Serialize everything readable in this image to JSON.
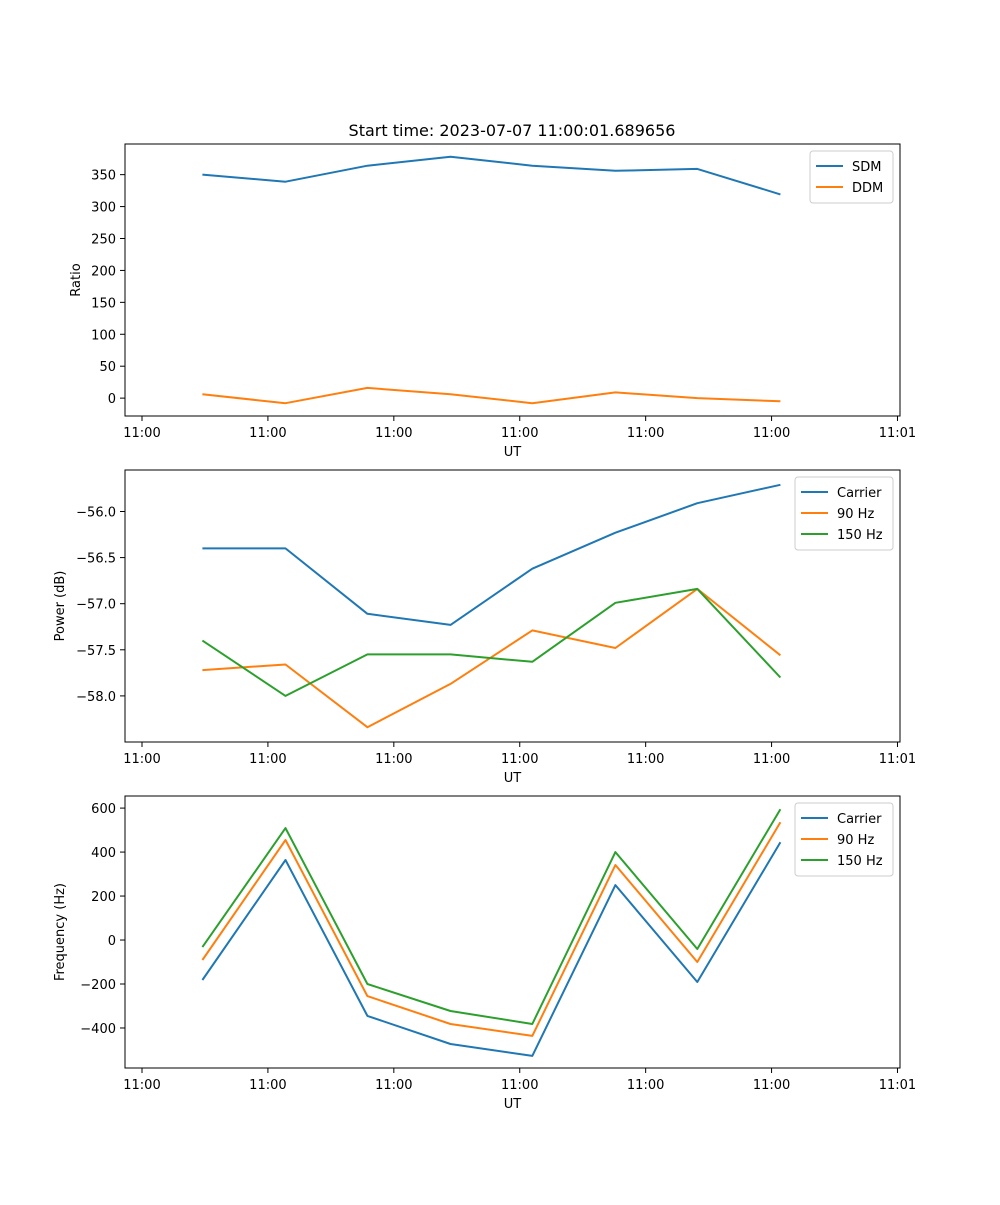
{
  "title": "Start time: 2023-07-07 11:00:01.689656",
  "colors": {
    "blue": "#1f77b4",
    "orange": "#ff7f0e",
    "green": "#2ca02c"
  },
  "chart_data": [
    {
      "type": "line",
      "xlabel": "UT",
      "ylabel": "Ratio",
      "x_unit": "seconds after 11:00:00",
      "xlim": [
        -1.35,
        60.2
      ],
      "xticks": [
        0,
        10,
        20,
        30,
        40,
        50,
        60
      ],
      "xtick_labels": [
        "11:00",
        "11:00",
        "11:00",
        "11:00",
        "11:00",
        "11:00",
        "11:01"
      ],
      "ylim": [
        -28,
        398
      ],
      "yticks": [
        0,
        50,
        100,
        150,
        200,
        250,
        300,
        350
      ],
      "ytick_labels": [
        "0",
        "50",
        "100",
        "150",
        "200",
        "250",
        "300",
        "350"
      ],
      "legend": "top-right",
      "x": [
        4.8,
        11.4,
        17.9,
        24.5,
        31.0,
        37.6,
        44.1,
        50.7
      ],
      "series": [
        {
          "name": "SDM",
          "color": "#1f77b4",
          "values": [
            350,
            339,
            364,
            378,
            364,
            356,
            359,
            319
          ]
        },
        {
          "name": "DDM",
          "color": "#ff7f0e",
          "values": [
            6,
            -8,
            16,
            6,
            -8,
            9,
            0,
            -5
          ]
        }
      ]
    },
    {
      "type": "line",
      "xlabel": "UT",
      "ylabel": "Power (dB)",
      "x_unit": "seconds after 11:00:00",
      "xlim": [
        -1.35,
        60.2
      ],
      "xticks": [
        0,
        10,
        20,
        30,
        40,
        50,
        60
      ],
      "xtick_labels": [
        "11:00",
        "11:00",
        "11:00",
        "11:00",
        "11:00",
        "11:00",
        "11:01"
      ],
      "ylim": [
        -58.5,
        -55.55
      ],
      "yticks": [
        -58.0,
        -57.5,
        -57.0,
        -56.5,
        -56.0
      ],
      "ytick_labels": [
        "−58.0",
        "−57.5",
        "−57.0",
        "−56.5",
        "−56.0"
      ],
      "legend": "top-right",
      "x": [
        4.8,
        11.4,
        17.9,
        24.5,
        31.0,
        37.6,
        44.1,
        50.7
      ],
      "series": [
        {
          "name": "Carrier",
          "color": "#1f77b4",
          "values": [
            -56.4,
            -56.4,
            -57.11,
            -57.23,
            -56.62,
            -56.23,
            -55.91,
            -55.71
          ]
        },
        {
          "name": "90 Hz",
          "color": "#ff7f0e",
          "values": [
            -57.72,
            -57.66,
            -58.34,
            -57.87,
            -57.29,
            -57.48,
            -56.84,
            -57.56
          ]
        },
        {
          "name": "150 Hz",
          "color": "#2ca02c",
          "values": [
            -57.4,
            -58.0,
            -57.55,
            -57.55,
            -57.63,
            -56.99,
            -56.84,
            -57.8
          ]
        }
      ]
    },
    {
      "type": "line",
      "xlabel": "UT",
      "ylabel": "Frequency (Hz)",
      "x_unit": "seconds after 11:00:00",
      "xlim": [
        -1.35,
        60.2
      ],
      "xticks": [
        0,
        10,
        20,
        30,
        40,
        50,
        60
      ],
      "xtick_labels": [
        "11:00",
        "11:00",
        "11:00",
        "11:00",
        "11:00",
        "11:00",
        "11:01"
      ],
      "ylim": [
        -582,
        655
      ],
      "yticks": [
        -400,
        -200,
        0,
        200,
        400,
        600
      ],
      "ytick_labels": [
        "−400",
        "−200",
        "0",
        "200",
        "400",
        "600"
      ],
      "legend": "top-right",
      "x": [
        4.8,
        11.4,
        17.9,
        24.5,
        31.0,
        37.6,
        44.1,
        50.7
      ],
      "series": [
        {
          "name": "Carrier",
          "color": "#1f77b4",
          "values": [
            -182,
            364,
            -345,
            -473,
            -527,
            250,
            -191,
            445
          ]
        },
        {
          "name": "90 Hz",
          "color": "#ff7f0e",
          "values": [
            -91,
            455,
            -255,
            -382,
            -436,
            341,
            -100,
            536
          ]
        },
        {
          "name": "150 Hz",
          "color": "#2ca02c",
          "values": [
            -32,
            509,
            -200,
            -323,
            -382,
            400,
            -41,
            595
          ]
        }
      ]
    }
  ]
}
